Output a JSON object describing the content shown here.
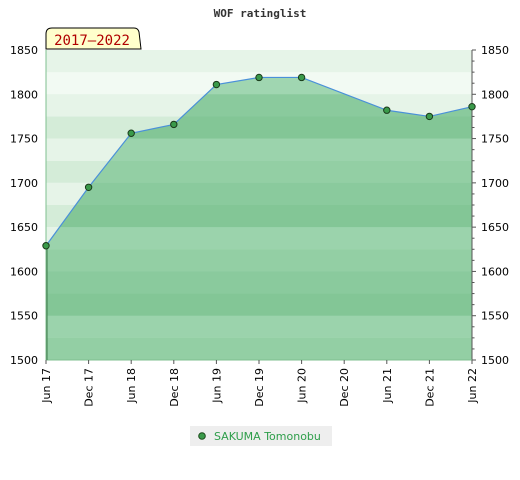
{
  "chart_data": {
    "type": "area",
    "title": "WOF ratinglist",
    "period_label": "2017–2022",
    "xlabel": "",
    "ylabel": "",
    "x_tick_labels": [
      "Jun 17",
      "Dec 17",
      "Jun 18",
      "Dec 18",
      "Jun 19",
      "Dec 19",
      "Jun 20",
      "Dec 20",
      "Jun 21",
      "Dec 21",
      "Jun 22"
    ],
    "y_ticks": [
      1500,
      1550,
      1600,
      1650,
      1700,
      1750,
      1800,
      1850
    ],
    "ylim": [
      1500,
      1850
    ],
    "right_axis": true,
    "grid": false,
    "legend_position": "bottom",
    "series": [
      {
        "name": "SAKUMA Tomonobu",
        "color": "#2e9e4a",
        "line_color": "#4a90d9",
        "fill_color": "#5cb87a",
        "marker_color": "#3a9a4a",
        "points": [
          {
            "x": "Jun 17",
            "y": 1629
          },
          {
            "x": "Dec 17",
            "y": 1695
          },
          {
            "x": "Jun 18",
            "y": 1756
          },
          {
            "x": "Dec 18",
            "y": 1766
          },
          {
            "x": "Jun 19",
            "y": 1811
          },
          {
            "x": "Dec 19",
            "y": 1819
          },
          {
            "x": "Jun 20",
            "y": 1819
          },
          {
            "x": "Jun 21",
            "y": 1782
          },
          {
            "x": "Dec 21",
            "y": 1775
          },
          {
            "x": "Jun 22",
            "y": 1786
          }
        ]
      }
    ]
  }
}
